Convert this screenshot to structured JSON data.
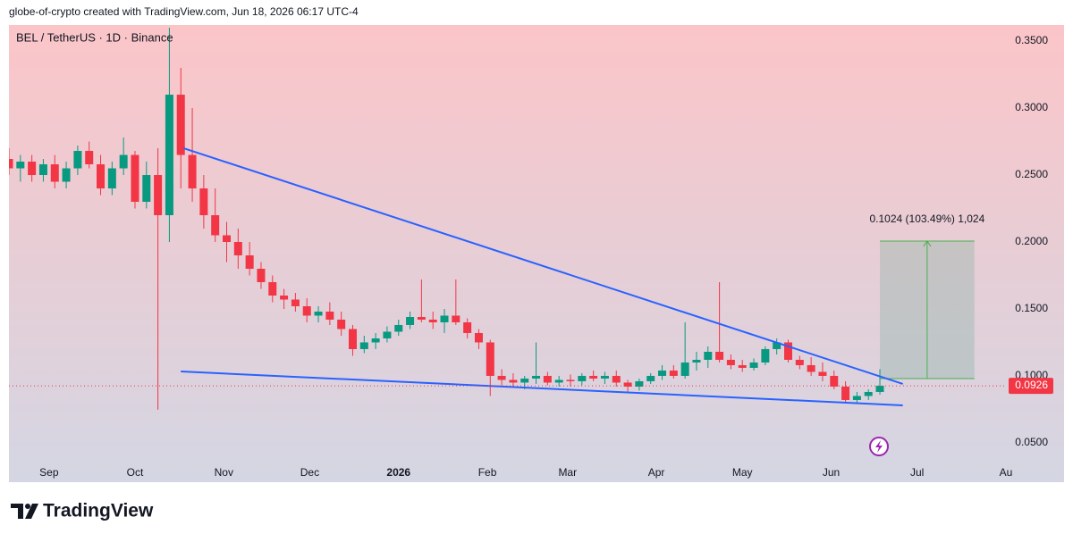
{
  "header": "globe-of-crypto created with TradingView.com, Jun 18, 2026 06:17 UTC-4",
  "footer": {
    "brand": "TradingView"
  },
  "chart_data": {
    "type": "candlestick",
    "title": "BEL / TetherUS · 1D · Binance",
    "up_color": "#089981",
    "down_color": "#f23645",
    "xlim": [
      -14,
      334
    ],
    "ylim": [
      0.0373,
      0.3607
    ],
    "xticks": [
      {
        "value": 0,
        "label": "Sep"
      },
      {
        "value": 30,
        "label": "Oct"
      },
      {
        "value": 61,
        "label": "Nov"
      },
      {
        "value": 91,
        "label": "Dec"
      },
      {
        "value": 122,
        "label": "2026"
      },
      {
        "value": 153,
        "label": "Feb"
      },
      {
        "value": 181,
        "label": "Mar"
      },
      {
        "value": 212,
        "label": "Apr"
      },
      {
        "value": 242,
        "label": "May"
      },
      {
        "value": 273,
        "label": "Jun"
      },
      {
        "value": 303,
        "label": "Jul"
      },
      {
        "value": 334,
        "label": "Au"
      }
    ],
    "yticks": [
      {
        "value": 0.05,
        "label": "0.0500"
      },
      {
        "value": 0.1,
        "label": "0.1000"
      },
      {
        "value": 0.15,
        "label": "0.1500"
      },
      {
        "value": 0.2,
        "label": "0.2000"
      },
      {
        "value": 0.25,
        "label": "0.2500"
      },
      {
        "value": 0.3,
        "label": "0.3000"
      },
      {
        "value": 0.35,
        "label": "0.3500"
      }
    ],
    "x": [
      -14,
      -10,
      -6,
      -2,
      2,
      6,
      10,
      14,
      18,
      22,
      26,
      30,
      34,
      38,
      42,
      46,
      50,
      54,
      58,
      62,
      66,
      70,
      74,
      78,
      82,
      86,
      90,
      94,
      98,
      102,
      106,
      110,
      114,
      118,
      122,
      126,
      130,
      134,
      138,
      142,
      146,
      150,
      154,
      158,
      162,
      166,
      170,
      174,
      178,
      182,
      186,
      190,
      194,
      198,
      202,
      206,
      210,
      214,
      218,
      222,
      226,
      230,
      234,
      238,
      242,
      246,
      250,
      254,
      258,
      262,
      266,
      270,
      274,
      278,
      282,
      286,
      290
    ],
    "open": [
      0.262,
      0.255,
      0.26,
      0.25,
      0.258,
      0.245,
      0.255,
      0.268,
      0.258,
      0.24,
      0.255,
      0.265,
      0.23,
      0.25,
      0.22,
      0.31,
      0.265,
      0.24,
      0.22,
      0.205,
      0.2,
      0.19,
      0.18,
      0.17,
      0.16,
      0.157,
      0.152,
      0.145,
      0.148,
      0.142,
      0.135,
      0.12,
      0.125,
      0.128,
      0.133,
      0.138,
      0.144,
      0.142,
      0.14,
      0.145,
      0.14,
      0.132,
      0.125,
      0.1,
      0.097,
      0.095,
      0.098,
      0.1,
      0.095,
      0.097,
      0.096,
      0.1,
      0.098,
      0.1,
      0.095,
      0.092,
      0.096,
      0.1,
      0.104,
      0.1,
      0.11,
      0.112,
      0.118,
      0.112,
      0.108,
      0.106,
      0.11,
      0.12,
      0.125,
      0.112,
      0.108,
      0.103,
      0.1,
      0.092,
      0.082,
      0.085,
      0.088
    ],
    "high": [
      0.27,
      0.265,
      0.265,
      0.262,
      0.265,
      0.26,
      0.272,
      0.275,
      0.265,
      0.26,
      0.278,
      0.268,
      0.26,
      0.27,
      0.36,
      0.33,
      0.3,
      0.25,
      0.24,
      0.215,
      0.21,
      0.2,
      0.185,
      0.175,
      0.165,
      0.162,
      0.158,
      0.152,
      0.155,
      0.148,
      0.138,
      0.13,
      0.132,
      0.137,
      0.142,
      0.148,
      0.172,
      0.148,
      0.15,
      0.172,
      0.143,
      0.135,
      0.127,
      0.105,
      0.102,
      0.1,
      0.125,
      0.103,
      0.1,
      0.101,
      0.102,
      0.104,
      0.103,
      0.104,
      0.097,
      0.098,
      0.102,
      0.108,
      0.108,
      0.14,
      0.118,
      0.122,
      0.17,
      0.116,
      0.112,
      0.113,
      0.122,
      0.128,
      0.127,
      0.115,
      0.114,
      0.11,
      0.104,
      0.096,
      0.088,
      0.09,
      0.105
    ],
    "low": [
      0.25,
      0.245,
      0.245,
      0.245,
      0.24,
      0.24,
      0.25,
      0.255,
      0.235,
      0.235,
      0.25,
      0.225,
      0.225,
      0.0747,
      0.2,
      0.24,
      0.23,
      0.21,
      0.2,
      0.185,
      0.18,
      0.175,
      0.165,
      0.155,
      0.15,
      0.148,
      0.14,
      0.14,
      0.138,
      0.13,
      0.115,
      0.117,
      0.12,
      0.125,
      0.13,
      0.135,
      0.14,
      0.135,
      0.132,
      0.138,
      0.128,
      0.12,
      0.085,
      0.093,
      0.092,
      0.09,
      0.094,
      0.093,
      0.092,
      0.092,
      0.093,
      0.096,
      0.094,
      0.092,
      0.088,
      0.089,
      0.094,
      0.097,
      0.098,
      0.098,
      0.104,
      0.106,
      0.11,
      0.105,
      0.103,
      0.104,
      0.108,
      0.116,
      0.11,
      0.105,
      0.1,
      0.096,
      0.09,
      0.08,
      0.079,
      0.082,
      0.086
    ],
    "close": [
      0.255,
      0.26,
      0.25,
      0.258,
      0.245,
      0.255,
      0.268,
      0.258,
      0.24,
      0.255,
      0.265,
      0.23,
      0.25,
      0.22,
      0.31,
      0.265,
      0.24,
      0.22,
      0.205,
      0.2,
      0.19,
      0.18,
      0.17,
      0.16,
      0.157,
      0.152,
      0.145,
      0.148,
      0.142,
      0.135,
      0.12,
      0.125,
      0.128,
      0.133,
      0.138,
      0.144,
      0.142,
      0.14,
      0.145,
      0.14,
      0.132,
      0.125,
      0.1,
      0.097,
      0.095,
      0.098,
      0.1,
      0.095,
      0.097,
      0.096,
      0.1,
      0.098,
      0.1,
      0.095,
      0.092,
      0.096,
      0.1,
      0.104,
      0.1,
      0.11,
      0.112,
      0.118,
      0.112,
      0.108,
      0.106,
      0.11,
      0.12,
      0.125,
      0.112,
      0.108,
      0.103,
      0.1,
      0.092,
      0.082,
      0.085,
      0.088,
      0.0926
    ],
    "last_price": 0.0926,
    "trend_lines": [
      {
        "x": [
          47,
          298
        ],
        "y": [
          0.27,
          0.094
        ],
        "color": "#2962ff"
      },
      {
        "x": [
          46,
          298
        ],
        "y": [
          0.1033,
          0.078
        ],
        "color": "#2962ff"
      }
    ],
    "measure": {
      "x": [
        290,
        323
      ],
      "y": [
        0.098,
        0.2007
      ],
      "label": "0.1024 (103.49%) 1,024",
      "color": "#4caf50"
    }
  }
}
